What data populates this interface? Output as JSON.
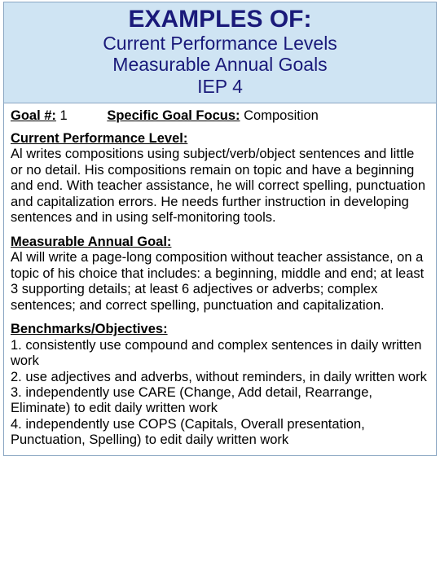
{
  "colors": {
    "header_bg": "#cfe4f3",
    "border": "#8aa6c2",
    "title_text": "#1a1a7a",
    "body_text": "#000000"
  },
  "header": {
    "line1": "EXAMPLES OF:",
    "line2": "Current Performance Levels",
    "line3": "Measurable Annual Goals",
    "line4": "IEP 4"
  },
  "goalRow": {
    "goalLabel": "Goal #:",
    "goalNumber": "1",
    "focusLabel": "Specific Goal Focus:",
    "focusValue": "Composition"
  },
  "cpl": {
    "heading": "Current Performance Level:",
    "text": "Al writes compositions using subject/verb/object sentences and little or no detail.  His compositions remain on topic and have a beginning and end.  With teacher assistance, he will correct spelling, punctuation and capitalization errors.  He needs further instruction in developing sentences and in using self-monitoring tools."
  },
  "mag": {
    "heading": "Measurable Annual Goal:",
    "text": "Al will write a page-long composition without teacher assistance, on a topic of his choice that includes: a beginning, middle and end; at least 3 supporting details; at least 6 adjectives or adverbs; complex sentences; and correct spelling, punctuation and capitalization."
  },
  "bench": {
    "heading": "Benchmarks/Objectives:",
    "items": [
      "1. consistently use compound and complex sentences in daily written work",
      "2. use adjectives and adverbs, without reminders, in daily written work",
      "3. independently use CARE (Change, Add detail, Rearrange, Eliminate) to edit daily written work",
      "4. independently use COPS (Capitals, Overall presentation, Punctuation, Spelling) to edit daily written work"
    ]
  }
}
